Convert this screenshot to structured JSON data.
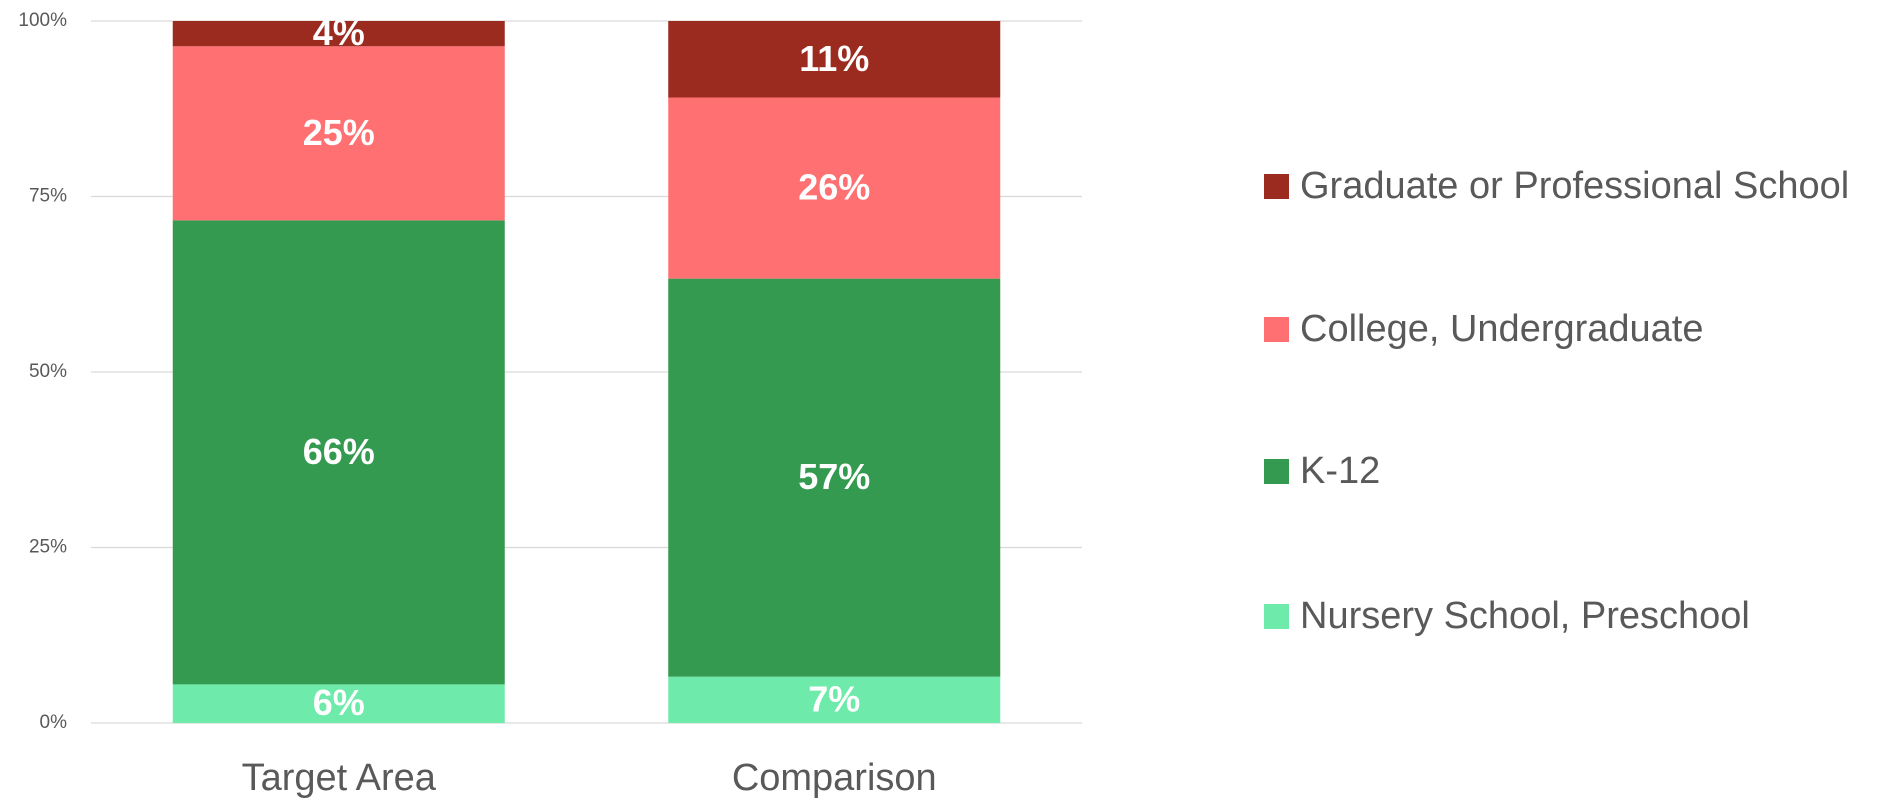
{
  "chart_data": {
    "type": "stacked_bar",
    "categories": [
      "Target Area",
      "Comparison"
    ],
    "series": [
      {
        "name": "Nursery School, Preschool",
        "color": "#6eeaaa",
        "values": [
          5.5,
          6.6
        ],
        "value_labels": [
          "6%",
          "7%"
        ]
      },
      {
        "name": "K-12",
        "color": "#339a4f",
        "values": [
          66.1,
          56.7
        ],
        "value_labels": [
          "66%",
          "57%"
        ]
      },
      {
        "name": "College, Undergraduate",
        "color": "#ff7073",
        "values": [
          24.8,
          25.8
        ],
        "value_labels": [
          "25%",
          "26%"
        ]
      },
      {
        "name": "Graduate or Professional School",
        "color": "#9b2a1f",
        "values": [
          3.6,
          10.9
        ],
        "value_labels": [
          "4%",
          "11%"
        ]
      }
    ],
    "ylim": [
      0,
      100
    ],
    "yticks": [
      {
        "value": 0,
        "label": "0%"
      },
      {
        "value": 25,
        "label": "25%"
      },
      {
        "value": 50,
        "label": "50%"
      },
      {
        "value": 75,
        "label": "75%"
      },
      {
        "value": 100,
        "label": "100%"
      }
    ],
    "grid": true,
    "legend": "right"
  }
}
